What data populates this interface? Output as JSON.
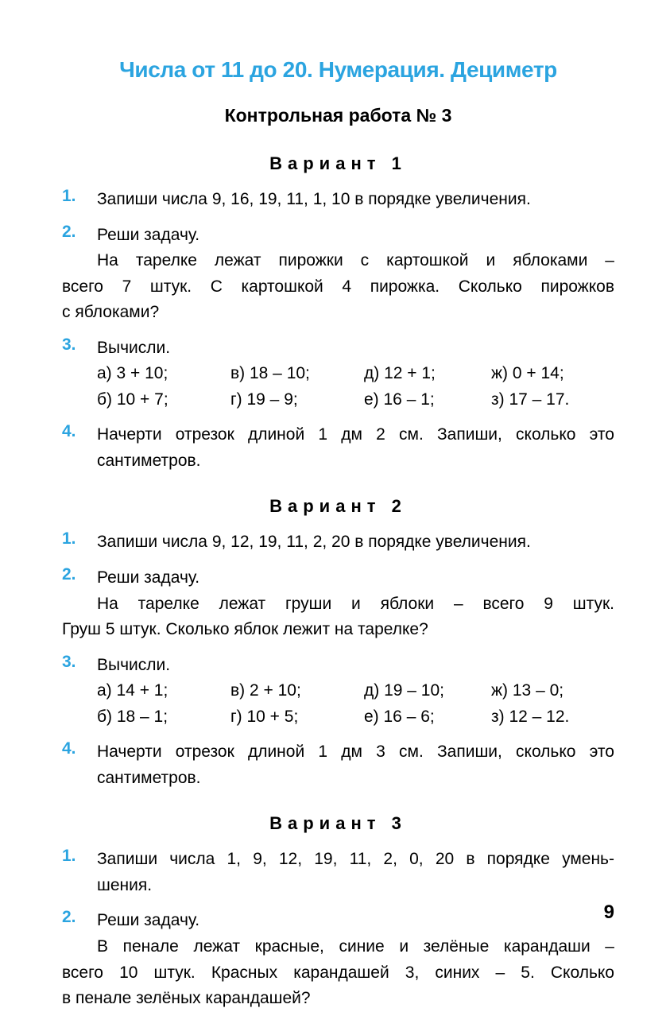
{
  "colors": {
    "accent": "#2ba4e0",
    "text": "#000000",
    "background": "#ffffff"
  },
  "typography": {
    "main_title_size": 28,
    "subtitle_size": 23,
    "variant_title_size": 22,
    "body_size": 21,
    "page_num_size": 24,
    "variant_letter_spacing": 7
  },
  "main_title": "Числа от 11 до 20. Нумерация. Дециметр",
  "subtitle": "Контрольная работа № 3",
  "page_number": "9",
  "variants": {
    "v1": {
      "title": "Вариант 1",
      "tasks": {
        "t1": {
          "num": "1.",
          "text": "Запиши числа 9, 16, 19, 11, 1, 10 в порядке увеличения."
        },
        "t2": {
          "num": "2.",
          "intro": "Реши задачу.",
          "line1": "На тарелке лежат пирожки с картошкой и яблоками –",
          "line2": "всего 7 штук. С картошкой 4 пирожка. Сколько пирожков",
          "line3": "с яблоками?"
        },
        "t3": {
          "num": "3.",
          "intro": "Вычисли.",
          "row1": {
            "a": "а) 3 + 10;",
            "b": "в) 18 – 10;",
            "c": "д) 12 + 1;",
            "d": "ж) 0 + 14;"
          },
          "row2": {
            "a": "б) 10 + 7;",
            "b": "г) 19 – 9;",
            "c": "е) 16 – 1;",
            "d": "з) 17 – 17."
          }
        },
        "t4": {
          "num": "4.",
          "line1": "Начерти отрезок длиной 1 дм 2 см. Запиши, сколько это",
          "line2": "сантиметров."
        }
      }
    },
    "v2": {
      "title": "Вариант 2",
      "tasks": {
        "t1": {
          "num": "1.",
          "text": "Запиши числа 9, 12, 19, 11, 2, 20 в порядке увеличения."
        },
        "t2": {
          "num": "2.",
          "intro": "Реши задачу.",
          "line1": "На тарелке лежат груши и яблоки – всего 9 штук.",
          "line2": "Груш 5 штук. Сколько яблок лежит на тарелке?"
        },
        "t3": {
          "num": "3.",
          "intro": "Вычисли.",
          "row1": {
            "a": "а) 14 + 1;",
            "b": "в) 2 + 10;",
            "c": "д) 19 – 10;",
            "d": "ж) 13 – 0;"
          },
          "row2": {
            "a": "б) 18 – 1;",
            "b": "г) 10 + 5;",
            "c": "е) 16 – 6;",
            "d": "з) 12 – 12."
          }
        },
        "t4": {
          "num": "4.",
          "line1": "Начерти отрезок длиной 1 дм 3 см. Запиши, сколько это",
          "line2": "сантиметров."
        }
      }
    },
    "v3": {
      "title": "Вариант 3",
      "tasks": {
        "t1": {
          "num": "1.",
          "line1": "Запиши числа 1, 9, 12, 19, 11, 2, 0, 20 в порядке умень-",
          "line2": "шения."
        },
        "t2": {
          "num": "2.",
          "intro": "Реши задачу.",
          "line1": "В пенале лежат красные, синие и зелёные карандаши –",
          "line2": "всего 10 штук. Красных карандашей 3, синих – 5. Сколько",
          "line3": "в пенале зелёных карандашей?"
        }
      }
    }
  }
}
